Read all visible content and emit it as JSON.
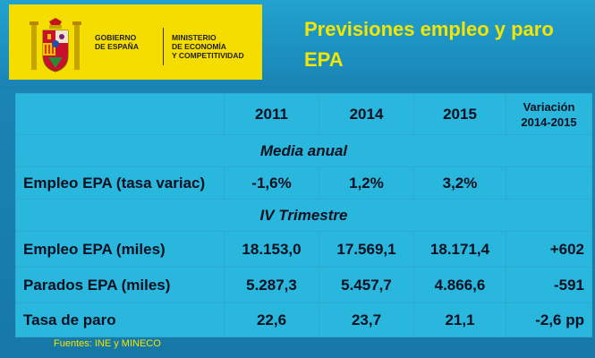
{
  "logo": {
    "gov_text": "GOBIERNO\nDE ESPAÑA",
    "ministry_text": "MINISTERIO\nDE ECONOMÍA\nY COMPETITIVIDAD"
  },
  "title": "Previsiones empleo y paro\nEPA",
  "table": {
    "headers": [
      "",
      "2011",
      "2014",
      "2015",
      "Variación\n2014-2015"
    ],
    "sections": [
      "Media anual",
      "IV Trimestre"
    ],
    "rows": [
      {
        "label": "Empleo EPA (tasa variac)",
        "v2011": "-1,6%",
        "v2014": "1,2%",
        "v2015": "3,2%",
        "var": ""
      },
      {
        "label": "Empleo EPA (miles)",
        "v2011": "18.153,0",
        "v2014": "17.569,1",
        "v2015": "18.171,4",
        "var": "+602"
      },
      {
        "label": "Parados EPA (miles)",
        "v2011": "5.287,3",
        "v2014": "5.457,7",
        "v2015": "4.866,6",
        "var": "-591"
      },
      {
        "label": "Tasa de paro",
        "v2011": "22,6",
        "v2014": "23,7",
        "v2015": "21,1",
        "var": "-2,6 pp"
      }
    ]
  },
  "source": "Fuentes: INE y MINECO",
  "colors": {
    "accent": "#f3e600",
    "logo_bg": "#f5dd00",
    "cell": "#29b7dd",
    "dark": "#0f7eb1"
  }
}
